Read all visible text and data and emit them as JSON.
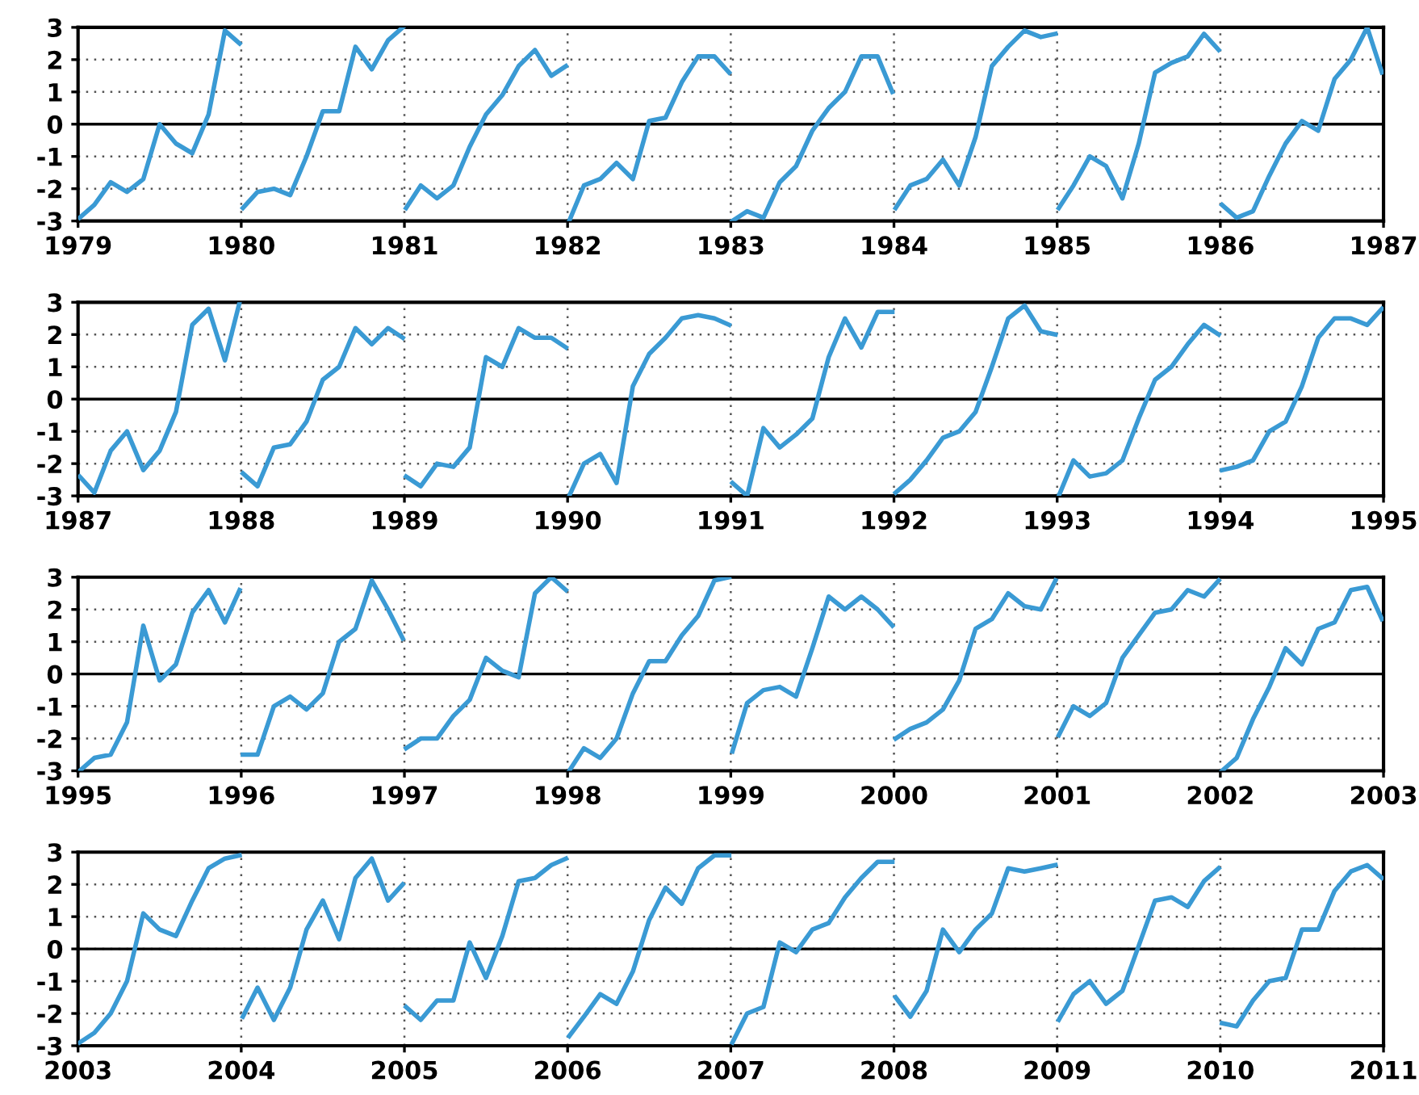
{
  "chart_data": [
    {
      "type": "line",
      "xlim": [
        1979,
        1987
      ],
      "xticks": [
        1979,
        1980,
        1981,
        1982,
        1983,
        1984,
        1985,
        1986,
        1987
      ],
      "ylim": [
        -3,
        3
      ],
      "yticks": [
        -3,
        -2,
        -1,
        0,
        1,
        2,
        3
      ],
      "grid": true,
      "line_style": "solid",
      "marker": "none",
      "ref_lines": [
        {
          "axis": "y",
          "value": 0,
          "color": "#000000",
          "line_style": "solid"
        }
      ],
      "series": [
        {
          "color": "#3a9ad4",
          "x": [
            1979.01,
            1979.1,
            1979.2,
            1979.3,
            1979.4,
            1979.5,
            1979.6,
            1979.7,
            1979.8,
            1979.9,
            1979.99,
            1979.995,
            1980.01,
            1980.1,
            1980.2,
            1980.3,
            1980.4,
            1980.5,
            1980.6,
            1980.7,
            1980.8,
            1980.9,
            1980.99,
            1980.995,
            1981.01,
            1981.1,
            1981.2,
            1981.3,
            1981.4,
            1981.5,
            1981.6,
            1981.7,
            1981.8,
            1981.9,
            1981.99,
            1981.995,
            1982.01,
            1982.1,
            1982.2,
            1982.3,
            1982.4,
            1982.5,
            1982.6,
            1982.7,
            1982.8,
            1982.9,
            1982.99,
            1982.995,
            1983.01,
            1983.1,
            1983.2,
            1983.3,
            1983.4,
            1983.5,
            1983.6,
            1983.7,
            1983.8,
            1983.9,
            1983.99,
            1983.995,
            1984.01,
            1984.1,
            1984.2,
            1984.3,
            1984.4,
            1984.5,
            1984.6,
            1984.7,
            1984.8,
            1984.9,
            1984.99,
            1984.995,
            1985.01,
            1985.1,
            1985.2,
            1985.3,
            1985.4,
            1985.5,
            1985.6,
            1985.7,
            1985.8,
            1985.9,
            1985.99,
            1985.995,
            1986.01,
            1986.1,
            1986.2,
            1986.3,
            1986.4,
            1986.5,
            1986.6,
            1986.7,
            1986.8,
            1986.9,
            1986.99
          ],
          "values": [
            -2.9,
            -2.5,
            -1.8,
            -2.1,
            -1.7,
            0.0,
            -0.6,
            -0.9,
            0.3,
            2.9,
            2.5,
            null,
            -2.6,
            -2.1,
            -2.0,
            -2.2,
            -1.0,
            0.4,
            0.4,
            2.4,
            1.7,
            2.6,
            3.0,
            null,
            -2.6,
            -1.9,
            -2.3,
            -1.9,
            -0.7,
            0.3,
            0.9,
            1.8,
            2.3,
            1.5,
            1.8,
            null,
            -3.0,
            -1.9,
            -1.7,
            -1.2,
            -1.7,
            0.1,
            0.2,
            1.3,
            2.1,
            2.1,
            1.6,
            null,
            -3.0,
            -2.7,
            -2.9,
            -1.8,
            -1.3,
            -0.2,
            0.5,
            1.0,
            2.1,
            2.1,
            1.0,
            null,
            -2.6,
            -1.9,
            -1.7,
            -1.1,
            -1.9,
            -0.4,
            1.8,
            2.4,
            2.9,
            2.7,
            2.8,
            null,
            -2.6,
            -1.9,
            -1.0,
            -1.3,
            -2.3,
            -0.6,
            1.6,
            1.9,
            2.1,
            2.8,
            2.3,
            null,
            -2.5,
            -2.9,
            -2.7,
            -1.6,
            -0.6,
            0.1,
            -0.2,
            1.4,
            2.0,
            3.0,
            1.6
          ]
        }
      ]
    },
    {
      "type": "line",
      "xlim": [
        1987,
        1995
      ],
      "xticks": [
        1987,
        1988,
        1989,
        1990,
        1991,
        1992,
        1993,
        1994,
        1995
      ],
      "ylim": [
        -3,
        3
      ],
      "yticks": [
        -3,
        -2,
        -1,
        0,
        1,
        2,
        3
      ],
      "grid": true,
      "line_style": "solid",
      "marker": "none",
      "ref_lines": [
        {
          "axis": "y",
          "value": 0,
          "color": "#000000",
          "line_style": "solid"
        }
      ],
      "series": [
        {
          "color": "#3a9ad4",
          "x": [
            1987.01,
            1987.1,
            1987.2,
            1987.3,
            1987.4,
            1987.5,
            1987.6,
            1987.7,
            1987.8,
            1987.9,
            1987.99,
            1987.995,
            1988.01,
            1988.1,
            1988.2,
            1988.3,
            1988.4,
            1988.5,
            1988.6,
            1988.7,
            1988.8,
            1988.9,
            1988.99,
            1988.995,
            1989.01,
            1989.1,
            1989.2,
            1989.3,
            1989.4,
            1989.5,
            1989.6,
            1989.7,
            1989.8,
            1989.9,
            1989.99,
            1989.995,
            1990.01,
            1990.1,
            1990.2,
            1990.3,
            1990.4,
            1990.5,
            1990.6,
            1990.7,
            1990.8,
            1990.9,
            1990.99,
            1990.995,
            1991.01,
            1991.1,
            1991.2,
            1991.3,
            1991.4,
            1991.5,
            1991.6,
            1991.7,
            1991.8,
            1991.9,
            1991.99,
            1991.995,
            1992.01,
            1992.1,
            1992.2,
            1992.3,
            1992.4,
            1992.5,
            1992.6,
            1992.7,
            1992.8,
            1992.9,
            1992.99,
            1992.995,
            1993.01,
            1993.1,
            1993.2,
            1993.3,
            1993.4,
            1993.5,
            1993.6,
            1993.7,
            1993.8,
            1993.9,
            1993.99,
            1993.995,
            1994.01,
            1994.1,
            1994.2,
            1994.3,
            1994.4,
            1994.5,
            1994.6,
            1994.7,
            1994.8,
            1994.9,
            1994.99
          ],
          "values": [
            -2.4,
            -2.9,
            -1.6,
            -1.0,
            -2.2,
            -1.6,
            -0.4,
            2.3,
            2.8,
            1.2,
            3.0,
            null,
            -2.3,
            -2.7,
            -1.5,
            -1.4,
            -0.7,
            0.6,
            1.0,
            2.2,
            1.7,
            2.2,
            1.9,
            null,
            -2.4,
            -2.7,
            -2.0,
            -2.1,
            -1.5,
            1.3,
            1.0,
            2.2,
            1.9,
            1.9,
            1.6,
            null,
            -3.0,
            -2.0,
            -1.7,
            -2.6,
            0.4,
            1.4,
            1.9,
            2.5,
            2.6,
            2.5,
            2.3,
            null,
            -2.6,
            -3.0,
            -0.9,
            -1.5,
            -1.1,
            -0.6,
            1.3,
            2.5,
            1.6,
            2.7,
            2.7,
            null,
            -2.9,
            -2.5,
            -1.9,
            -1.2,
            -1.0,
            -0.4,
            1.0,
            2.5,
            2.9,
            2.1,
            2.0,
            null,
            -3.0,
            -1.9,
            -2.4,
            -2.3,
            -1.9,
            -0.6,
            0.6,
            1.0,
            1.7,
            2.3,
            2.0,
            null,
            -2.2,
            -2.1,
            -1.9,
            -1.0,
            -0.7,
            0.4,
            1.9,
            2.5,
            2.5,
            2.3,
            2.8
          ]
        }
      ]
    },
    {
      "type": "line",
      "xlim": [
        1995,
        2003
      ],
      "xticks": [
        1995,
        1996,
        1997,
        1998,
        1999,
        2000,
        2001,
        2002,
        2003
      ],
      "ylim": [
        -3,
        3
      ],
      "yticks": [
        -3,
        -2,
        -1,
        0,
        1,
        2,
        3
      ],
      "grid": true,
      "line_style": "solid",
      "marker": "none",
      "ref_lines": [
        {
          "axis": "y",
          "value": 0,
          "color": "#000000",
          "line_style": "solid"
        }
      ],
      "series": [
        {
          "color": "#3a9ad4",
          "x": [
            1995.01,
            1995.1,
            1995.2,
            1995.3,
            1995.4,
            1995.5,
            1995.6,
            1995.7,
            1995.8,
            1995.9,
            1995.99,
            1995.995,
            1996.01,
            1996.1,
            1996.2,
            1996.3,
            1996.4,
            1996.5,
            1996.6,
            1996.7,
            1996.8,
            1996.9,
            1996.99,
            1996.995,
            1997.01,
            1997.1,
            1997.2,
            1997.3,
            1997.4,
            1997.5,
            1997.6,
            1997.7,
            1997.8,
            1997.9,
            1997.99,
            1997.995,
            1998.01,
            1998.1,
            1998.2,
            1998.3,
            1998.4,
            1998.5,
            1998.6,
            1998.7,
            1998.8,
            1998.9,
            1998.99,
            1998.995,
            1999.01,
            1999.1,
            1999.2,
            1999.3,
            1999.4,
            1999.5,
            1999.6,
            1999.7,
            1999.8,
            1999.9,
            1999.99,
            1999.995,
            2000.01,
            2000.1,
            2000.2,
            2000.3,
            2000.4,
            2000.5,
            2000.6,
            2000.7,
            2000.8,
            2000.9,
            2000.99,
            2000.995,
            2001.01,
            2001.1,
            2001.2,
            2001.3,
            2001.4,
            2001.5,
            2001.6,
            2001.7,
            2001.8,
            2001.9,
            2001.99,
            2001.995,
            2002.01,
            2002.1,
            2002.2,
            2002.3,
            2002.4,
            2002.5,
            2002.6,
            2002.7,
            2002.8,
            2002.9,
            2002.99
          ],
          "values": [
            -3.0,
            -2.6,
            -2.5,
            -1.5,
            1.5,
            -0.2,
            0.3,
            1.9,
            2.6,
            1.6,
            2.6,
            null,
            -2.5,
            -2.5,
            -1.0,
            -0.7,
            -1.1,
            -0.6,
            1.0,
            1.4,
            2.9,
            2.0,
            1.1,
            null,
            -2.3,
            -2.0,
            -2.0,
            -1.3,
            -0.8,
            0.5,
            0.1,
            -0.1,
            2.5,
            3.0,
            2.6,
            null,
            -3.0,
            -2.3,
            -2.6,
            -2.0,
            -0.6,
            0.4,
            0.4,
            1.2,
            1.8,
            2.9,
            3.0,
            null,
            -2.4,
            -0.9,
            -0.5,
            -0.4,
            -0.7,
            0.8,
            2.4,
            2.0,
            2.4,
            2.0,
            1.5,
            null,
            -2.0,
            -1.7,
            -1.5,
            -1.1,
            -0.2,
            1.4,
            1.7,
            2.5,
            2.1,
            2.0,
            2.9,
            null,
            -1.9,
            -1.0,
            -1.3,
            -0.9,
            0.5,
            1.2,
            1.9,
            2.0,
            2.6,
            2.4,
            2.9,
            null,
            -3.0,
            -2.6,
            -1.4,
            -0.4,
            0.8,
            0.3,
            1.4,
            1.6,
            2.6,
            2.7,
            1.7
          ]
        }
      ]
    },
    {
      "type": "line",
      "xlim": [
        2003,
        2011
      ],
      "xticks": [
        2003,
        2004,
        2005,
        2006,
        2007,
        2008,
        2009,
        2010,
        2011
      ],
      "ylim": [
        -3,
        3
      ],
      "yticks": [
        -3,
        -2,
        -1,
        0,
        1,
        2,
        3
      ],
      "grid": true,
      "line_style": "solid",
      "marker": "none",
      "ref_lines": [
        {
          "axis": "y",
          "value": 0,
          "color": "#000000",
          "line_style": "solid"
        }
      ],
      "series": [
        {
          "color": "#3a9ad4",
          "x": [
            2003.01,
            2003.1,
            2003.2,
            2003.3,
            2003.4,
            2003.5,
            2003.6,
            2003.7,
            2003.8,
            2003.9,
            2003.99,
            2003.995,
            2004.01,
            2004.1,
            2004.2,
            2004.3,
            2004.4,
            2004.5,
            2004.6,
            2004.7,
            2004.8,
            2004.9,
            2004.99,
            2004.995,
            2005.01,
            2005.1,
            2005.2,
            2005.3,
            2005.4,
            2005.5,
            2005.6,
            2005.7,
            2005.8,
            2005.9,
            2005.99,
            2005.995,
            2006.01,
            2006.1,
            2006.2,
            2006.3,
            2006.4,
            2006.5,
            2006.6,
            2006.7,
            2006.8,
            2006.9,
            2006.99,
            2006.995,
            2007.01,
            2007.1,
            2007.2,
            2007.3,
            2007.4,
            2007.5,
            2007.6,
            2007.7,
            2007.8,
            2007.9,
            2007.99,
            2007.995,
            2008.01,
            2008.1,
            2008.2,
            2008.3,
            2008.4,
            2008.5,
            2008.6,
            2008.7,
            2008.8,
            2008.9,
            2008.99,
            2008.995,
            2009.01,
            2009.1,
            2009.2,
            2009.3,
            2009.4,
            2009.5,
            2009.6,
            2009.7,
            2009.8,
            2009.9,
            2009.99,
            2009.995,
            2010.01,
            2010.1,
            2010.2,
            2010.3,
            2010.4,
            2010.5,
            2010.6,
            2010.7,
            2010.8,
            2010.9,
            2010.99
          ],
          "values": [
            -2.9,
            -2.6,
            -2.0,
            -1.0,
            1.1,
            0.6,
            0.4,
            1.5,
            2.5,
            2.8,
            2.9,
            null,
            -2.1,
            -1.2,
            -2.2,
            -1.2,
            0.6,
            1.5,
            0.3,
            2.2,
            2.8,
            1.5,
            2.0,
            null,
            -1.8,
            -2.2,
            -1.6,
            -1.6,
            0.2,
            -0.9,
            0.4,
            2.1,
            2.2,
            2.6,
            2.8,
            null,
            -2.7,
            -2.1,
            -1.4,
            -1.7,
            -0.7,
            0.9,
            1.9,
            1.4,
            2.5,
            2.9,
            2.9,
            null,
            -2.9,
            -2.0,
            -1.8,
            0.2,
            -0.1,
            0.6,
            0.8,
            1.6,
            2.2,
            2.7,
            2.7,
            null,
            -1.5,
            -2.1,
            -1.3,
            0.6,
            -0.1,
            0.6,
            1.1,
            2.5,
            2.4,
            2.5,
            2.6,
            null,
            -2.2,
            -1.4,
            -1.0,
            -1.7,
            -1.3,
            0.1,
            1.5,
            1.6,
            1.3,
            2.1,
            2.5,
            null,
            -2.3,
            -2.4,
            -1.6,
            -1.0,
            -0.9,
            0.6,
            0.6,
            1.8,
            2.4,
            2.6,
            2.2
          ]
        }
      ]
    }
  ]
}
